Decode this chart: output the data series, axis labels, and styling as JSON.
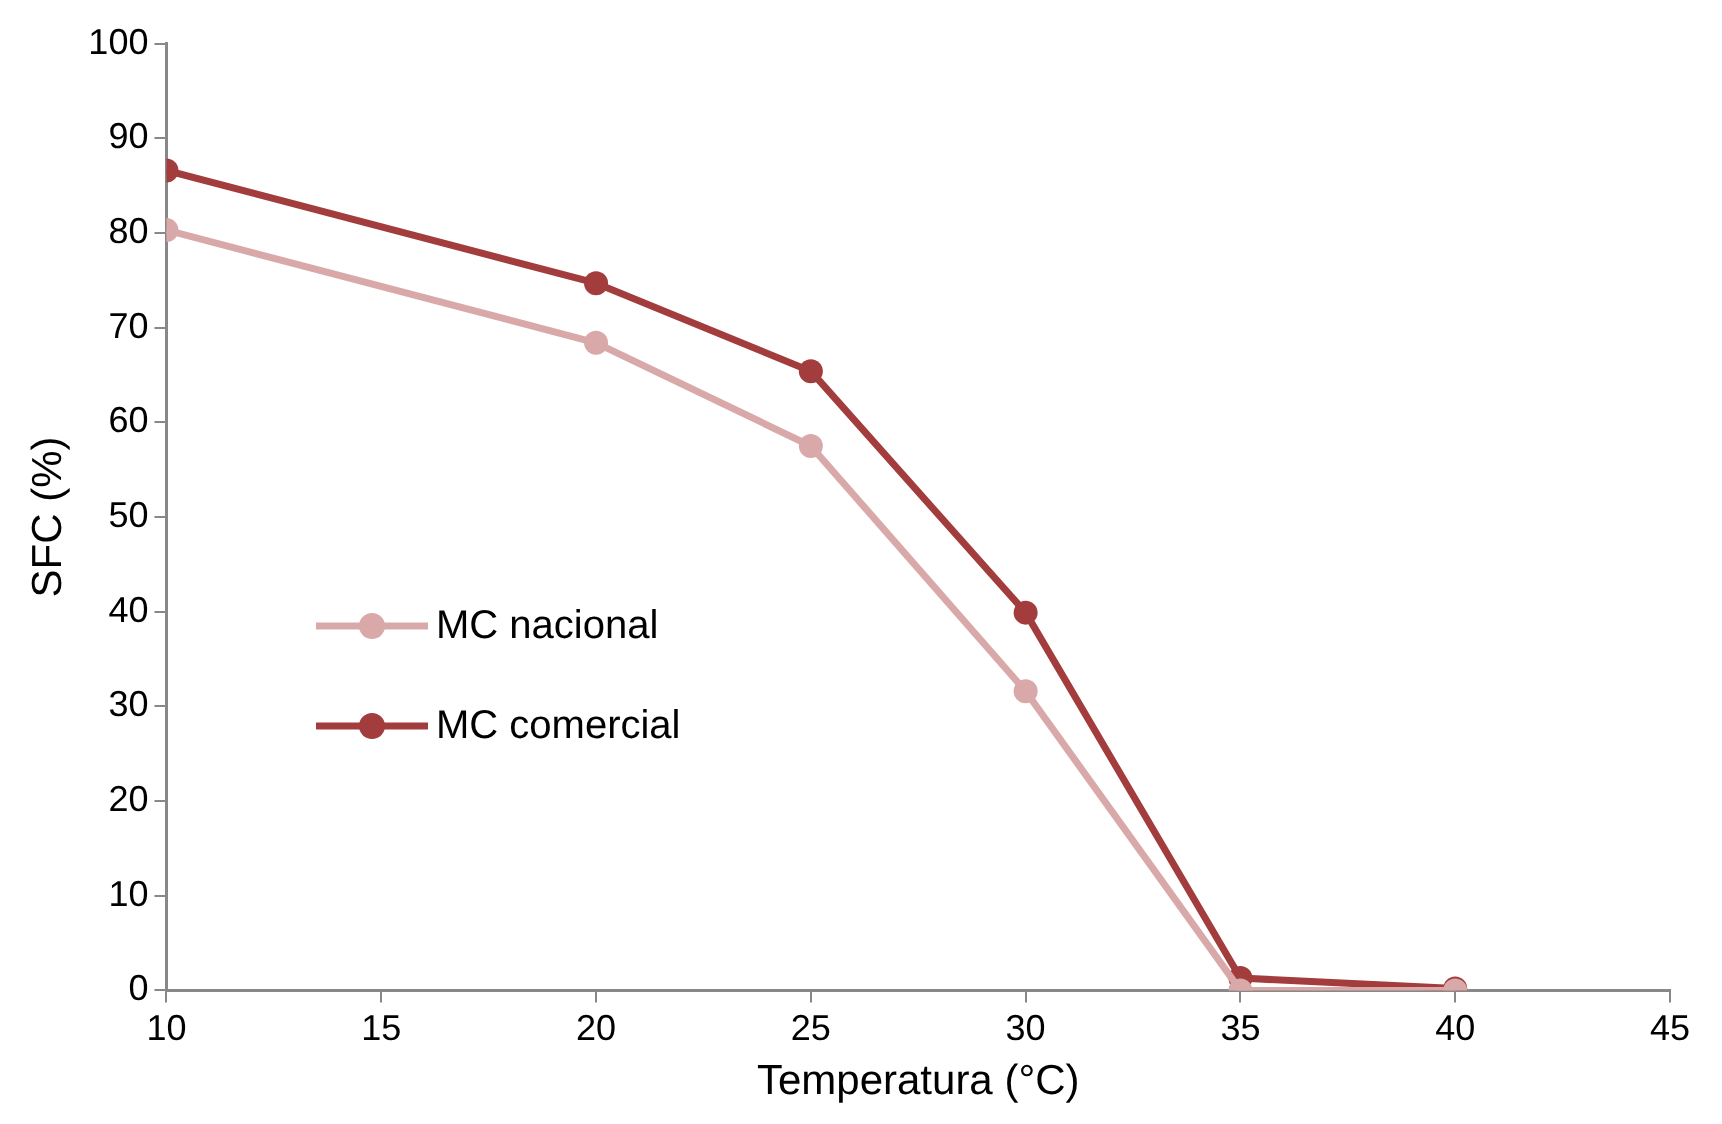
{
  "chart_data": {
    "type": "line",
    "xlabel": "Temperatura (°C)",
    "ylabel": "SFC (%)",
    "x": [
      10,
      20,
      25,
      30,
      35,
      40
    ],
    "series": [
      {
        "name": "MC nacional",
        "color": "#d9a9a9",
        "values": [
          80.3,
          68.4,
          57.5,
          31.6,
          0,
          0
        ]
      },
      {
        "name": "MC comercial",
        "color": "#a33c3c",
        "values": [
          86.6,
          74.7,
          65.4,
          39.9,
          1.3,
          0.2
        ]
      }
    ],
    "xlim": [
      10,
      45
    ],
    "xticks": [
      10,
      15,
      20,
      25,
      30,
      35,
      40,
      45
    ],
    "ylim": [
      0,
      100
    ],
    "yticks": [
      0,
      10,
      20,
      30,
      40,
      50,
      60,
      70,
      80,
      90,
      100
    ],
    "grid": false,
    "legend": "left",
    "marker": "circle",
    "line_style": "solid"
  }
}
